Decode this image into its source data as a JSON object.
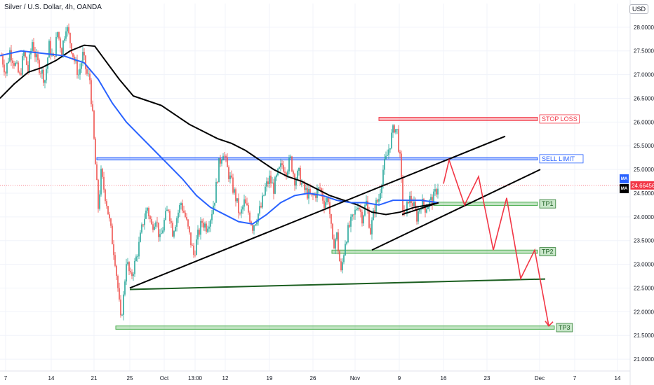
{
  "header": {
    "symbol_title": "Silver / U.S. Dollar, 4h, OANDA",
    "currency": "USD"
  },
  "colors": {
    "up": "#26a69a",
    "down": "#ef5350",
    "ma_fast": "#2962ff",
    "ma_slow": "#000000",
    "zone_red": "#f23645",
    "zone_blue": "#2962ff",
    "zone_green": "#4caf50",
    "trend_line": "#000000",
    "support_line": "#1b5e20",
    "projection": "#f23645",
    "last_price": "#f23645"
  },
  "chart_data": {
    "type": "candlestick",
    "symbol": "Silver / U.S. Dollar",
    "interval": "4h",
    "exchange": "OANDA",
    "ylim": [
      20.75,
      28.5
    ],
    "y_ticks": [
      21.0,
      21.5,
      22.0,
      22.5,
      23.0,
      23.5,
      24.0,
      24.5,
      25.0,
      25.5,
      26.0,
      26.5,
      27.0,
      27.5,
      28.0
    ],
    "x_range": [
      0,
      932
    ],
    "x_ticks": [
      {
        "label": "7",
        "x": 8
      },
      {
        "label": "14",
        "x": 73
      },
      {
        "label": "21",
        "x": 134
      },
      {
        "label": "25",
        "x": 185
      },
      {
        "label": "Oct",
        "x": 234
      },
      {
        "label": "13:00",
        "x": 278
      },
      {
        "label": "12",
        "x": 321
      },
      {
        "label": "19",
        "x": 384
      },
      {
        "label": "26",
        "x": 446
      },
      {
        "label": "Nov",
        "x": 506
      },
      {
        "label": "9",
        "x": 569
      },
      {
        "label": "16",
        "x": 632
      },
      {
        "label": "23",
        "x": 694
      },
      {
        "label": "Dec",
        "x": 769
      },
      {
        "label": "7",
        "x": 819
      },
      {
        "label": "14",
        "x": 880
      }
    ],
    "last_price": 24.66456,
    "last_price_label": "24.66456",
    "price_path": [
      [
        2,
        27.4
      ],
      [
        8,
        27.05
      ],
      [
        14,
        27.5
      ],
      [
        22,
        27.2
      ],
      [
        28,
        26.95
      ],
      [
        34,
        27.45
      ],
      [
        40,
        27.1
      ],
      [
        46,
        27.7
      ],
      [
        52,
        27.3
      ],
      [
        58,
        27.1
      ],
      [
        64,
        26.9
      ],
      [
        70,
        27.6
      ],
      [
        76,
        27.3
      ],
      [
        82,
        27.9
      ],
      [
        88,
        27.5
      ],
      [
        94,
        28.05
      ],
      [
        100,
        27.7
      ],
      [
        106,
        27.3
      ],
      [
        112,
        27.0
      ],
      [
        118,
        27.4
      ],
      [
        124,
        27.0
      ],
      [
        128,
        26.9
      ],
      [
        132,
        26.1
      ],
      [
        136,
        25.1
      ],
      [
        140,
        24.2
      ],
      [
        144,
        24.9
      ],
      [
        148,
        24.6
      ],
      [
        152,
        24.3
      ],
      [
        156,
        23.9
      ],
      [
        160,
        23.5
      ],
      [
        164,
        23.1
      ],
      [
        168,
        22.5
      ],
      [
        172,
        21.8
      ],
      [
        176,
        22.3
      ],
      [
        180,
        23.1
      ],
      [
        186,
        22.7
      ],
      [
        192,
        23.0
      ],
      [
        198,
        23.4
      ],
      [
        204,
        23.9
      ],
      [
        210,
        24.2
      ],
      [
        216,
        23.8
      ],
      [
        222,
        24.0
      ],
      [
        228,
        23.5
      ],
      [
        234,
        23.9
      ],
      [
        240,
        24.2
      ],
      [
        246,
        23.7
      ],
      [
        252,
        24.0
      ],
      [
        258,
        24.3
      ],
      [
        264,
        24.0
      ],
      [
        270,
        23.6
      ],
      [
        276,
        23.2
      ],
      [
        282,
        23.6
      ],
      [
        288,
        23.9
      ],
      [
        294,
        23.8
      ],
      [
        300,
        24.0
      ],
      [
        306,
        24.4
      ],
      [
        312,
        25.1
      ],
      [
        318,
        25.4
      ],
      [
        324,
        25.0
      ],
      [
        330,
        24.7
      ],
      [
        336,
        24.4
      ],
      [
        342,
        24.0
      ],
      [
        348,
        24.3
      ],
      [
        354,
        24.1
      ],
      [
        360,
        23.8
      ],
      [
        366,
        24.0
      ],
      [
        372,
        24.2
      ],
      [
        378,
        24.6
      ],
      [
        384,
        24.8
      ],
      [
        390,
        24.6
      ],
      [
        396,
        24.9
      ],
      [
        402,
        25.1
      ],
      [
        408,
        25.0
      ],
      [
        414,
        25.2
      ],
      [
        420,
        24.8
      ],
      [
        426,
        24.9
      ],
      [
        432,
        24.6
      ],
      [
        438,
        24.5
      ],
      [
        444,
        24.4
      ],
      [
        450,
        24.5
      ],
      [
        456,
        24.6
      ],
      [
        462,
        24.3
      ],
      [
        468,
        24.4
      ],
      [
        474,
        23.4
      ],
      [
        480,
        23.6
      ],
      [
        486,
        22.8
      ],
      [
        492,
        23.5
      ],
      [
        498,
        23.8
      ],
      [
        504,
        24.0
      ],
      [
        510,
        24.3
      ],
      [
        516,
        24.0
      ],
      [
        522,
        24.3
      ],
      [
        528,
        23.7
      ],
      [
        534,
        24.2
      ],
      [
        540,
        24.4
      ],
      [
        546,
        25.0
      ],
      [
        552,
        25.3
      ],
      [
        558,
        25.7
      ],
      [
        562,
        25.9
      ],
      [
        566,
        25.8
      ],
      [
        570,
        25.2
      ],
      [
        574,
        24.2
      ],
      [
        578,
        24.0
      ],
      [
        582,
        24.4
      ],
      [
        588,
        24.3
      ],
      [
        594,
        24.0
      ],
      [
        600,
        24.3
      ],
      [
        606,
        24.2
      ],
      [
        612,
        24.3
      ],
      [
        618,
        24.4
      ],
      [
        624,
        24.66
      ]
    ],
    "ma_fast": [
      [
        0,
        27.4
      ],
      [
        30,
        27.5
      ],
      [
        60,
        27.45
      ],
      [
        90,
        27.4
      ],
      [
        120,
        27.25
      ],
      [
        140,
        26.9
      ],
      [
        160,
        26.4
      ],
      [
        180,
        26.0
      ],
      [
        200,
        25.7
      ],
      [
        220,
        25.4
      ],
      [
        240,
        25.1
      ],
      [
        260,
        24.8
      ],
      [
        280,
        24.45
      ],
      [
        300,
        24.2
      ],
      [
        320,
        24.05
      ],
      [
        340,
        23.9
      ],
      [
        360,
        23.85
      ],
      [
        380,
        24.05
      ],
      [
        400,
        24.3
      ],
      [
        420,
        24.45
      ],
      [
        440,
        24.5
      ],
      [
        460,
        24.45
      ],
      [
        480,
        24.35
      ],
      [
        500,
        24.3
      ],
      [
        520,
        24.3
      ],
      [
        540,
        24.25
      ],
      [
        560,
        24.35
      ],
      [
        580,
        24.35
      ],
      [
        600,
        24.35
      ],
      [
        625,
        24.3
      ]
    ],
    "ma_slow": [
      [
        0,
        26.5
      ],
      [
        20,
        26.8
      ],
      [
        40,
        27.05
      ],
      [
        60,
        27.15
      ],
      [
        80,
        27.3
      ],
      [
        100,
        27.5
      ],
      [
        120,
        27.62
      ],
      [
        135,
        27.6
      ],
      [
        150,
        27.3
      ],
      [
        170,
        26.9
      ],
      [
        190,
        26.55
      ],
      [
        210,
        26.45
      ],
      [
        230,
        26.35
      ],
      [
        250,
        26.15
      ],
      [
        270,
        25.95
      ],
      [
        290,
        25.8
      ],
      [
        310,
        25.65
      ],
      [
        330,
        25.55
      ],
      [
        350,
        25.4
      ],
      [
        370,
        25.2
      ],
      [
        390,
        25.0
      ],
      [
        410,
        24.85
      ],
      [
        430,
        24.75
      ],
      [
        450,
        24.6
      ],
      [
        470,
        24.45
      ],
      [
        490,
        24.35
      ],
      [
        510,
        24.25
      ],
      [
        530,
        24.1
      ],
      [
        550,
        24.05
      ],
      [
        570,
        24.1
      ],
      [
        590,
        24.2
      ],
      [
        610,
        24.25
      ],
      [
        625,
        24.3
      ]
    ],
    "zones": [
      {
        "name": "stop-loss-zone",
        "label": "STOP LOSS",
        "x1": 540,
        "x2": 766,
        "y_top": 26.1,
        "y_bottom": 26.03,
        "color": "red"
      },
      {
        "name": "sell-limit-zone",
        "label": "SELL LIMIT",
        "x1": 138,
        "x2": 766,
        "y_top": 25.25,
        "y_bottom": 25.2,
        "color": "blue"
      },
      {
        "name": "tp1-zone",
        "label": "TP1",
        "x1": 618,
        "x2": 766,
        "y_top": 24.31,
        "y_bottom": 24.24,
        "color": "green"
      },
      {
        "name": "tp2-zone",
        "label": "TP2",
        "x1": 473,
        "x2": 766,
        "y_top": 23.3,
        "y_bottom": 23.23,
        "color": "green"
      },
      {
        "name": "tp3-zone",
        "label": "TP3",
        "x1": 165,
        "x2": 790,
        "y_top": 21.7,
        "y_bottom": 21.63,
        "color": "green"
      }
    ],
    "trend_lines": [
      {
        "name": "rising-channel-upper-line",
        "points": [
          [
            185,
            22.5
          ],
          [
            720,
            25.7
          ]
        ],
        "color": "trend"
      },
      {
        "name": "rising-channel-lower-line",
        "points": [
          [
            530,
            23.3
          ],
          [
            770,
            25.0
          ]
        ],
        "color": "trend"
      },
      {
        "name": "long-support-line",
        "points": [
          [
            185,
            22.47
          ],
          [
            777,
            22.69
          ]
        ],
        "color": "support"
      },
      {
        "name": "wedge-support-line",
        "points": [
          [
            573,
            24.05
          ],
          [
            625,
            24.3
          ]
        ],
        "color": "trend"
      }
    ],
    "projection_path": [
      [
        632,
        24.7
      ],
      [
        640,
        25.2
      ],
      [
        662,
        24.25
      ],
      [
        682,
        24.85
      ],
      [
        703,
        23.3
      ],
      [
        722,
        24.4
      ],
      [
        742,
        22.7
      ],
      [
        762,
        23.3
      ],
      [
        782,
        21.7
      ]
    ]
  }
}
